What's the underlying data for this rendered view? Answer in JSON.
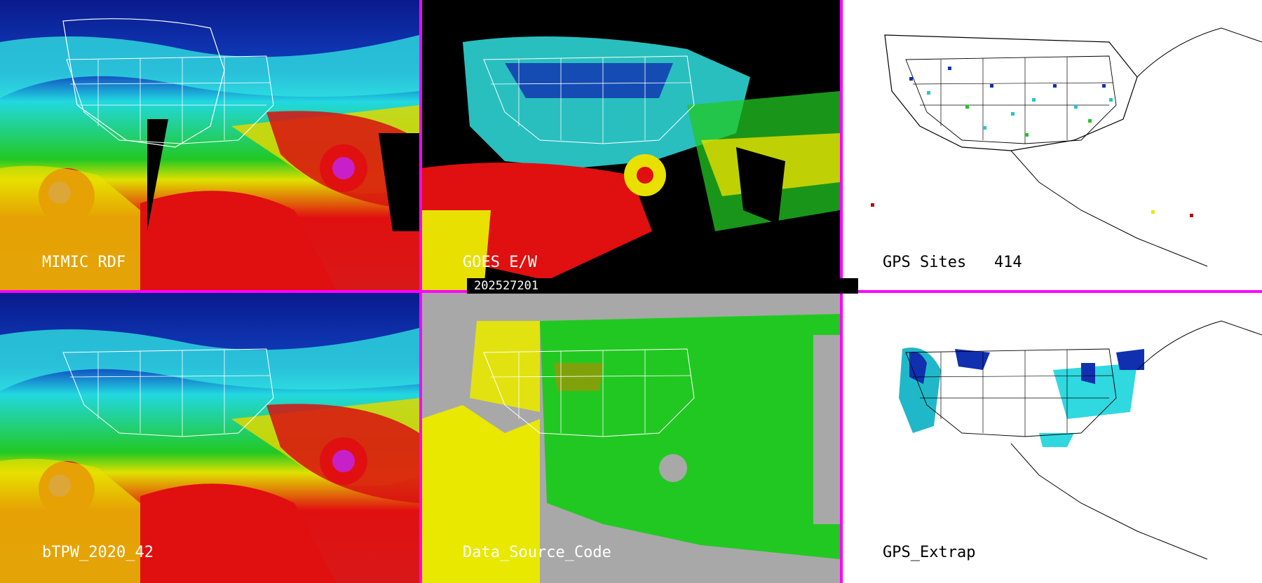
{
  "panels": [
    {
      "id": "mimic",
      "label": "MIMIC RDF",
      "style": "tpw"
    },
    {
      "id": "goes",
      "label": "GOES E/W",
      "style": "goes"
    },
    {
      "id": "gps-sites",
      "label": "GPS Sites   414",
      "style": "gps"
    },
    {
      "id": "btpw",
      "label": "bTPW_2020_42",
      "style": "tpw"
    },
    {
      "id": "dsc",
      "label": "Data_Source_Code",
      "style": "dsc"
    },
    {
      "id": "gps-extrap",
      "label": "GPS_Extrap",
      "style": "gpsx"
    }
  ],
  "timestamp": "202527201",
  "colors": {
    "divider": "#ff00ff",
    "ocean_low": "#0a1a8c",
    "cyan": "#22e0e0",
    "green": "#22cc22",
    "yellow": "#e8e800",
    "red": "#e01010",
    "gray": "#a8a8a8"
  }
}
